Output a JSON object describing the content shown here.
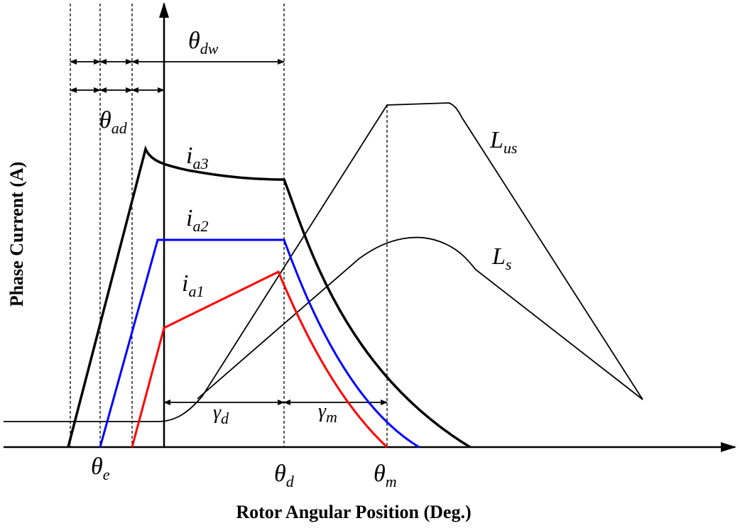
{
  "labels": {
    "y_axis": "Phase Current (A)",
    "x_axis": "Rotor Angular Position (Deg.)",
    "theta_dw": {
      "main": "θ",
      "sub": "dw"
    },
    "theta_ad": {
      "main": "θ",
      "sub": "ad"
    },
    "i_a3": {
      "main": "i",
      "sub": "a3"
    },
    "i_a2": {
      "main": "i",
      "sub": "a2"
    },
    "i_a1": {
      "main": "i",
      "sub": "a1"
    },
    "L_us": {
      "main": "L",
      "sub": "us"
    },
    "L_s": {
      "main": "L",
      "sub": "s"
    },
    "gamma_d": {
      "main": "γ",
      "sub": "d"
    },
    "gamma_m": {
      "main": "γ",
      "sub": "m"
    },
    "theta_e": {
      "main": "θ",
      "sub": "e"
    },
    "theta_d": {
      "main": "θ",
      "sub": "d"
    },
    "theta_m": {
      "main": "θ",
      "sub": "m"
    }
  }
}
